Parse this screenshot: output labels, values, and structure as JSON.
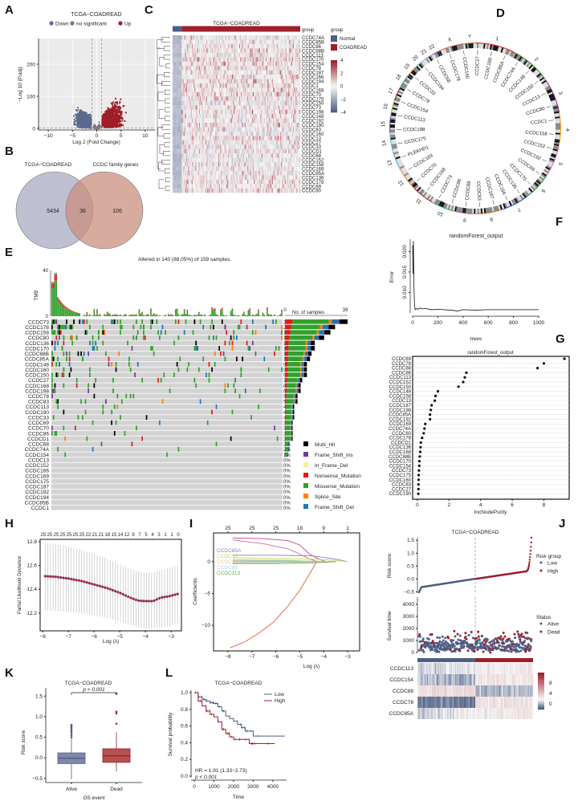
{
  "colors": {
    "down": "#5a6a8f",
    "ns": "#777777",
    "up": "#9e1f2a",
    "normal": "#4e5f86",
    "tumor": "#9e1f2a",
    "low": "#4e5f86",
    "high": "#9e1f2a",
    "multi_hit": "#000000",
    "frame_shift_ins": "#6a3d9a",
    "in_frame_del": "#f5eda0",
    "nonsense": "#e31a1c",
    "missense": "#33a02c",
    "splice": "#ff7f00",
    "frame_shift_del": "#1f78b4"
  },
  "panels": {
    "A": "A",
    "B": "B",
    "C": "C",
    "D": "D",
    "E": "E",
    "F": "F",
    "G": "G",
    "H": "H",
    "I": "I",
    "J": "J",
    "K": "K",
    "L": "L"
  },
  "chart_data": [
    {
      "id": "A",
      "type": "scatter",
      "title": "TCGA−COADREAD",
      "xlabel": "Log 2 (Fold  Change)",
      "ylabel": "−Log 10 (P.adj)",
      "xlim": [
        -12,
        12
      ],
      "ylim": [
        -5,
        280
      ],
      "xticks": [
        "−10",
        "−5",
        "0",
        "5",
        "10"
      ],
      "xtick_values": [
        -10,
        -5,
        0,
        5,
        10
      ],
      "yticks": [
        "0",
        "100",
        "200"
      ],
      "ytick_values": [
        0,
        100,
        200
      ],
      "legend": [
        {
          "name": "Down",
          "color_key": "down"
        },
        {
          "name": "no significant",
          "color_key": "ns"
        },
        {
          "name": "Up",
          "color_key": "up"
        }
      ],
      "thresholds": {
        "logfc": [
          -1,
          1
        ],
        "padj_line": 1.3
      },
      "grid": true,
      "notes": "Thousands of genes; Down cluster spans log2FC -8 to -1 up to ~165; Up cluster spans 1 to 12 up to ~275."
    },
    {
      "id": "B",
      "type": "venn",
      "sets": [
        {
          "name": "TCGA−COADREAD",
          "only": 5434
        },
        {
          "name": "CCDC family genes",
          "only": 106
        }
      ],
      "intersection": 36
    },
    {
      "id": "C",
      "type": "heatmap",
      "title": "TCGA−COADREAD",
      "annotation_label": "group",
      "legend_title": "group",
      "groups": [
        "Normal",
        "COADREAD"
      ],
      "group_fraction_normal": 0.07,
      "color_scale": {
        "min": -4,
        "max": 4,
        "ticks": [
          "4",
          "2",
          "0",
          "−2",
          "−4"
        ]
      },
      "rows": [
        "CCDC74A",
        "CCDC85B",
        "CCDC86",
        "CCDC88B",
        "CCDC113",
        "CCDC170",
        "CCDC154",
        "CCDC78",
        "CCDC187",
        "CCDC166",
        "CCDC194",
        "CCDC1",
        "CCDC168",
        "CCDC70",
        "CCDC175",
        "CCDC150",
        "CCDC73",
        "CCDC198",
        "CCDC148",
        "CCDC192",
        "CCDC190",
        "CCDC83",
        "CCDC160",
        "CCDC13",
        "CCDC27",
        "CCDC33",
        "CCDCD1",
        "CCDC68",
        "CCDC152",
        "CCDC158",
        "CCDC169",
        "CCDC85A",
        "CCDC136",
        "CCDC178",
        "CCDC69",
        "CCDC80"
      ]
    },
    {
      "id": "D",
      "type": "circos",
      "chromosomes": [
        "1",
        "2",
        "3",
        "4",
        "5",
        "6",
        "7",
        "8",
        "9",
        "10",
        "11",
        "12",
        "13",
        "14",
        "15",
        "16",
        "17",
        "18",
        "19",
        "20",
        "21",
        "22",
        "X",
        "Y"
      ],
      "gene_labels": [
        "CCDC27",
        "CCDC180",
        "CCDC85A",
        "CCDC74A",
        "CCDC148",
        "CCDC150",
        "CCDC13",
        "CCDC80",
        "CCDC1",
        "CCDC158",
        "CCDC152",
        "CCDC192",
        "CCDC69",
        "CCDC170",
        "CCDC136",
        "CCDC166",
        "CCDC187",
        "CCDC83",
        "CCDC89",
        "CCDC86",
        "CCDC73",
        "CCDC168",
        "CCDC70",
        "CCDC169",
        "PLEKHD1",
        "CCDC175",
        "CCDC198",
        "CCDC113",
        "CCDC154",
        "CCDC78",
        "CCDC33",
        "CCDC194",
        "CCDC68",
        "CCDC178",
        "CCDC160"
      ]
    },
    {
      "id": "E",
      "type": "table",
      "subtitle": "Altered in 140 (88.05%) of 159 samples.",
      "tmb_label": "TMB",
      "tmb_ticks": [
        "40",
        "0"
      ],
      "bar_axis_title": "No. of samples",
      "bar_axis_ticks": [
        "0",
        "39"
      ],
      "bar_max": 39,
      "genes": [
        "CCDC73",
        "CCDC178",
        "CCDC158",
        "CCDC80",
        "CCDC136",
        "CCDC170",
        "CCDC88B",
        "CCDC85A",
        "CCDC148",
        "CCDC160",
        "CCDC150",
        "CCDC27",
        "CCDC168",
        "CCDC198",
        "CCDC78",
        "CCDC83",
        "CCDC113",
        "CCDC190",
        "CCDC33",
        "CCDC69",
        "CCDC70",
        "CCDC86",
        "CCDCD1",
        "CCDC68",
        "CCDC74A",
        "CCDC154",
        "CCDC13",
        "CCDC152",
        "CCDC166",
        "CCDC169",
        "CCDC175",
        "CCDC187",
        "CCDC192",
        "CCDC194",
        "CCDC85B",
        "CCDC1"
      ],
      "percents": [
        "25%",
        "20%",
        "18%",
        "16%",
        "12%",
        "12%",
        "11%",
        "10%",
        "9%",
        "9%",
        "9%",
        "7%",
        "6%",
        "6%",
        "5%",
        "5%",
        "4%",
        "4%",
        "4%",
        "3%",
        "3%",
        "3%",
        "3%",
        "2%",
        "2%",
        "1%",
        "0%",
        "0%",
        "0%",
        "0%",
        "0%",
        "0%",
        "0%",
        "0%",
        "0%",
        "0%"
      ],
      "legend": [
        {
          "name": "Multi_Hit",
          "color_key": "multi_hit"
        },
        {
          "name": "Frame_Shift_Ins",
          "color_key": "frame_shift_ins"
        },
        {
          "name": "In_Frame_Del",
          "color_key": "in_frame_del"
        },
        {
          "name": "Nonsense_Mutation",
          "color_key": "nonsense"
        },
        {
          "name": "Missense_Mutation",
          "color_key": "missense"
        },
        {
          "name": "Splice_Site",
          "color_key": "splice"
        },
        {
          "name": "Frame_Shift_Del",
          "color_key": "frame_shift_del"
        }
      ]
    },
    {
      "id": "F",
      "type": "line",
      "title": "randomForest_output",
      "xlabel": "trees",
      "ylabel": "Error",
      "xlim": [
        0,
        1000
      ],
      "ylim": [
        0.005,
        0.023
      ],
      "xticks": [
        "0",
        "200",
        "400",
        "600",
        "800",
        "1000"
      ],
      "xtick_values": [
        0,
        200,
        400,
        600,
        800,
        1000
      ],
      "yticks": [
        "0.010",
        "0.015",
        "0.020"
      ],
      "ytick_values": [
        0.01,
        0.015,
        0.02
      ],
      "x": [
        1,
        3,
        6,
        10,
        15,
        20,
        30,
        40,
        60,
        80,
        100,
        150,
        200,
        300,
        360,
        400,
        500,
        600,
        700,
        800,
        900,
        1000
      ],
      "y": [
        0.0215,
        0.0145,
        0.0225,
        0.012,
        0.007,
        0.0058,
        0.0061,
        0.0059,
        0.0062,
        0.006,
        0.0061,
        0.0058,
        0.0059,
        0.0057,
        0.0055,
        0.0058,
        0.0057,
        0.0058,
        0.0058,
        0.0058,
        0.0058,
        0.0058
      ]
    },
    {
      "id": "G",
      "type": "scatter",
      "title": "randomForest_output",
      "xlabel": "IncNodePurity",
      "xlim": [
        -0.3,
        9.6
      ],
      "xticks": [
        "0",
        "2",
        "4",
        "6",
        "8"
      ],
      "xtick_values": [
        0,
        2,
        4,
        6,
        8
      ],
      "genes": [
        "CCDC69",
        "CCDC78",
        "CCDC88",
        "CCDC86",
        "CCDC113",
        "CCDC152",
        "CCDC150",
        "CCDC148",
        "CCDC158",
        "CCDC13",
        "CCDC187",
        "CCDC198",
        "CCDC85A",
        "CCDC192",
        "CCDC169",
        "CCDC74A",
        "CCDC80",
        "CCDC178",
        "CCDCD1",
        "CCDC136",
        "CCDC168",
        "CCDC88B",
        "CCDC170",
        "CCDC154",
        "CCDC73",
        "CCDC175",
        "CCDC160",
        "CCDC83",
        "CCDC27",
        "CCDC190"
      ],
      "values": [
        9.3,
        8.0,
        7.6,
        3.1,
        3.0,
        2.9,
        2.6,
        1.3,
        1.15,
        1.1,
        0.9,
        0.85,
        0.8,
        0.8,
        0.5,
        0.45,
        0.4,
        0.3,
        0.22,
        0.2,
        0.18,
        0.15,
        0.13,
        0.12,
        0.1,
        0.08,
        0.08,
        0.07,
        0.07,
        0.06
      ]
    },
    {
      "id": "H",
      "type": "line",
      "xlabel": "Log (λ)",
      "ylabel": "Partial Likelihood Deviance",
      "xlim": [
        -8.1,
        -2.6
      ],
      "ylim": [
        12.05,
        12.82
      ],
      "xticks": [
        "−8",
        "−7",
        "−6",
        "−5",
        "−4",
        "−3"
      ],
      "xtick_values": [
        -8,
        -7,
        -6,
        -5,
        -4,
        -3
      ],
      "yticks": [
        "12.2",
        "12.4",
        "12.6",
        "12.8"
      ],
      "ytick_values": [
        12.2,
        12.4,
        12.6,
        12.8
      ],
      "top_ticks": [
        "25",
        "25",
        "25",
        "25",
        "25",
        "25",
        "25",
        "22",
        "21",
        "21",
        "18",
        "15",
        "14",
        "12",
        "9",
        "7",
        "5",
        "4",
        "3",
        "1",
        "1",
        "0"
      ],
      "x": [
        -7.9,
        -7.5,
        -7.0,
        -6.5,
        -6.0,
        -5.5,
        -5.0,
        -4.6,
        -4.3,
        -4.0,
        -3.7,
        -3.4,
        -3.1,
        -2.75
      ],
      "mean": [
        12.51,
        12.505,
        12.49,
        12.47,
        12.44,
        12.41,
        12.37,
        12.33,
        12.305,
        12.3,
        12.3,
        12.33,
        12.34,
        12.36
      ],
      "upper": [
        12.79,
        12.78,
        12.76,
        12.73,
        12.7,
        12.66,
        12.61,
        12.57,
        12.55,
        12.54,
        12.54,
        12.56,
        12.58,
        12.6
      ],
      "lower": [
        12.22,
        12.22,
        12.21,
        12.2,
        12.18,
        12.16,
        12.13,
        12.1,
        12.08,
        12.07,
        12.07,
        12.08,
        12.09,
        12.11
      ]
    },
    {
      "id": "I",
      "type": "line",
      "xlabel": "Log (λ)",
      "ylabel": "Coefficients",
      "xlim": [
        -8.6,
        -2.5
      ],
      "ylim": [
        -14,
        4.5
      ],
      "xticks": [
        "−8",
        "−7",
        "−6",
        "−5",
        "−4",
        "−3"
      ],
      "xtick_values": [
        -8,
        -7,
        -6,
        -5,
        -4,
        -3
      ],
      "yticks": [
        "0",
        "−5",
        "−10"
      ],
      "ytick_values": [
        0,
        -5,
        -10
      ],
      "top_ticks": [
        "25",
        "25",
        "25",
        "18",
        "9",
        "1"
      ],
      "top_tick_values": [
        -8,
        -7,
        -6,
        -5,
        -4,
        -3
      ],
      "series_labels": [
        {
          "name": "CCDC85A",
          "color": "#8a7fb8"
        },
        {
          "name": "CCDC78",
          "color": "#c9d44c"
        },
        {
          "name": "CCDC154",
          "color": "#e6c9a8"
        },
        {
          "name": "CCDC88",
          "color": "#a9d7e8"
        },
        {
          "name": "CCDC113",
          "color": "#6aa84f"
        }
      ],
      "series": [
        {
          "name": "pink-1",
          "color": "#c2408f",
          "x": [
            -7.8,
            -6.5,
            -5.5,
            -5.0,
            -4.6,
            -4.2,
            -3.9
          ],
          "y": [
            3.7,
            3.6,
            3.3,
            2.6,
            1.2,
            0.4,
            0
          ]
        },
        {
          "name": "pink-2",
          "color": "#d46aa5",
          "x": [
            -7.8,
            -6.5,
            -5.5,
            -5.0,
            -4.6,
            -4.2
          ],
          "y": [
            3.4,
            2.8,
            2.0,
            1.2,
            0.4,
            0
          ]
        },
        {
          "name": "CCDC85A",
          "color": "#8a7fb8",
          "x": [
            -7.8,
            -6,
            -4.5,
            -3.5,
            -3.0
          ],
          "y": [
            1.0,
            1.0,
            0.9,
            0.4,
            0
          ]
        },
        {
          "name": "CCDC78",
          "color": "#c9d44c",
          "x": [
            -7.8,
            -6,
            -4.5,
            -3.5,
            -3.0
          ],
          "y": [
            0.6,
            0.5,
            0.4,
            0.2,
            0
          ]
        },
        {
          "name": "CCDC154",
          "color": "#e6c9a8",
          "x": [
            -7.8,
            -6,
            -4.5,
            -3.5
          ],
          "y": [
            0.2,
            0.15,
            0.1,
            0
          ]
        },
        {
          "name": "CCDC88",
          "color": "#a9d7e8",
          "x": [
            -7.8,
            -6,
            -4.5,
            -3.5
          ],
          "y": [
            -0.2,
            -0.15,
            -0.1,
            0
          ]
        },
        {
          "name": "CCDC113",
          "color": "#6aa84f",
          "x": [
            -7.8,
            -6,
            -4.5,
            -3.5
          ],
          "y": [
            -0.35,
            -0.3,
            -0.2,
            0
          ]
        },
        {
          "name": "orange",
          "color": "#ea5a3c",
          "x": [
            -7.9,
            -7.3,
            -6.7,
            -6.1,
            -5.5,
            -5.0,
            -4.6,
            -4.3
          ],
          "y": [
            -13.5,
            -12.6,
            -11.2,
            -9.5,
            -7.0,
            -4.5,
            -2.0,
            0
          ]
        }
      ]
    },
    {
      "id": "J",
      "type": "scatter",
      "title": "TCGA−COADREAD",
      "risk_ylabel": "Risk score",
      "risk_yticks": [
        "1.5",
        "1.0",
        "0.5",
        "0.0",
        "−0.5"
      ],
      "risk_ytick_values": [
        1.5,
        1.0,
        0.5,
        0.0,
        -0.5
      ],
      "risk_ylim": [
        -0.55,
        1.6
      ],
      "risk_legend_title": "Risk group",
      "risk_legend": [
        {
          "name": "Low",
          "color_key": "low"
        },
        {
          "name": "High",
          "color_key": "high"
        }
      ],
      "surv_ylabel": "Survival time",
      "surv_yticks": [
        "4000",
        "3000",
        "2000",
        "1000",
        "0"
      ],
      "surv_ytick_values": [
        4000,
        3000,
        2000,
        1000,
        0
      ],
      "surv_ylim": [
        0,
        4600
      ],
      "status_legend_title": "Status",
      "status_legend": [
        {
          "name": "Alive",
          "color_key": "low"
        },
        {
          "name": "Dead",
          "color_key": "high"
        }
      ],
      "cutoff_fraction": 0.5,
      "heatmap_genes": [
        "CCDC113",
        "CCDC154",
        "CCDC88",
        "CCDC78",
        "CCDC85A"
      ],
      "heatmap_scale_ticks": [
        "8",
        "4",
        "0"
      ]
    },
    {
      "id": "K",
      "type": "bar",
      "subtype": "boxplot",
      "title": "TCGA−COADREAD",
      "xlabel": "OS event",
      "ylabel": "Risk score",
      "categories": [
        "Alive",
        "Dead"
      ],
      "ylim": [
        -0.6,
        1.7
      ],
      "yticks": [
        "1.5",
        "1.0",
        "0.5",
        "0.0",
        "−0.5"
      ],
      "ytick_values": [
        1.5,
        1.0,
        0.5,
        0.0,
        -0.5
      ],
      "boxes": [
        {
          "name": "Alive",
          "min": -0.52,
          "q1": -0.14,
          "median": -0.01,
          "q3": 0.12,
          "max": 0.47,
          "outliers": [
            0.5,
            0.55,
            0.6,
            0.64,
            0.68,
            0.72,
            0.75,
            0.78,
            0.8
          ]
        },
        {
          "name": "Dead",
          "min": -0.33,
          "q1": -0.11,
          "median": 0.05,
          "q3": 0.22,
          "max": 0.62,
          "outliers": [
            0.83,
            1.08,
            1.12,
            1.56
          ]
        }
      ],
      "significance": "p < 0.001"
    },
    {
      "id": "L",
      "type": "line",
      "subtype": "kaplan-meier",
      "title": "TCGA−COADREAD",
      "xlabel": "Time",
      "ylabel": "Survival probability",
      "xlim": [
        0,
        4700
      ],
      "ylim": [
        0,
        1.0
      ],
      "xticks": [
        "0",
        "1000",
        "2000",
        "3000",
        "4000"
      ],
      "xtick_values": [
        0,
        1000,
        2000,
        3000,
        4000
      ],
      "yticks": [
        "0.0",
        "0.2",
        "0.4",
        "0.6",
        "0.8",
        "1.0"
      ],
      "ytick_values": [
        0,
        0.2,
        0.4,
        0.6,
        0.8,
        1.0
      ],
      "annotation_hr": "HR = 1.91 (1.33−2.73)",
      "annotation_p": "p < 0.001",
      "series": [
        {
          "name": "Low",
          "color_key": "low",
          "x": [
            0,
            200,
            400,
            600,
            800,
            1000,
            1200,
            1400,
            1600,
            1800,
            2000,
            2200,
            2400,
            2600,
            2800,
            3000,
            4600
          ],
          "y": [
            1.0,
            0.95,
            0.92,
            0.9,
            0.88,
            0.87,
            0.83,
            0.78,
            0.72,
            0.69,
            0.66,
            0.62,
            0.58,
            0.54,
            0.54,
            0.48,
            0.48
          ]
        },
        {
          "name": "High",
          "color_key": "high",
          "x": [
            0,
            200,
            400,
            600,
            800,
            1000,
            1200,
            1400,
            1600,
            1800,
            2000,
            2200,
            2500,
            2800,
            3000,
            4100
          ],
          "y": [
            1.0,
            0.9,
            0.84,
            0.78,
            0.74,
            0.71,
            0.65,
            0.56,
            0.51,
            0.47,
            0.44,
            0.44,
            0.44,
            0.39,
            0.39,
            0.39
          ]
        }
      ]
    }
  ]
}
